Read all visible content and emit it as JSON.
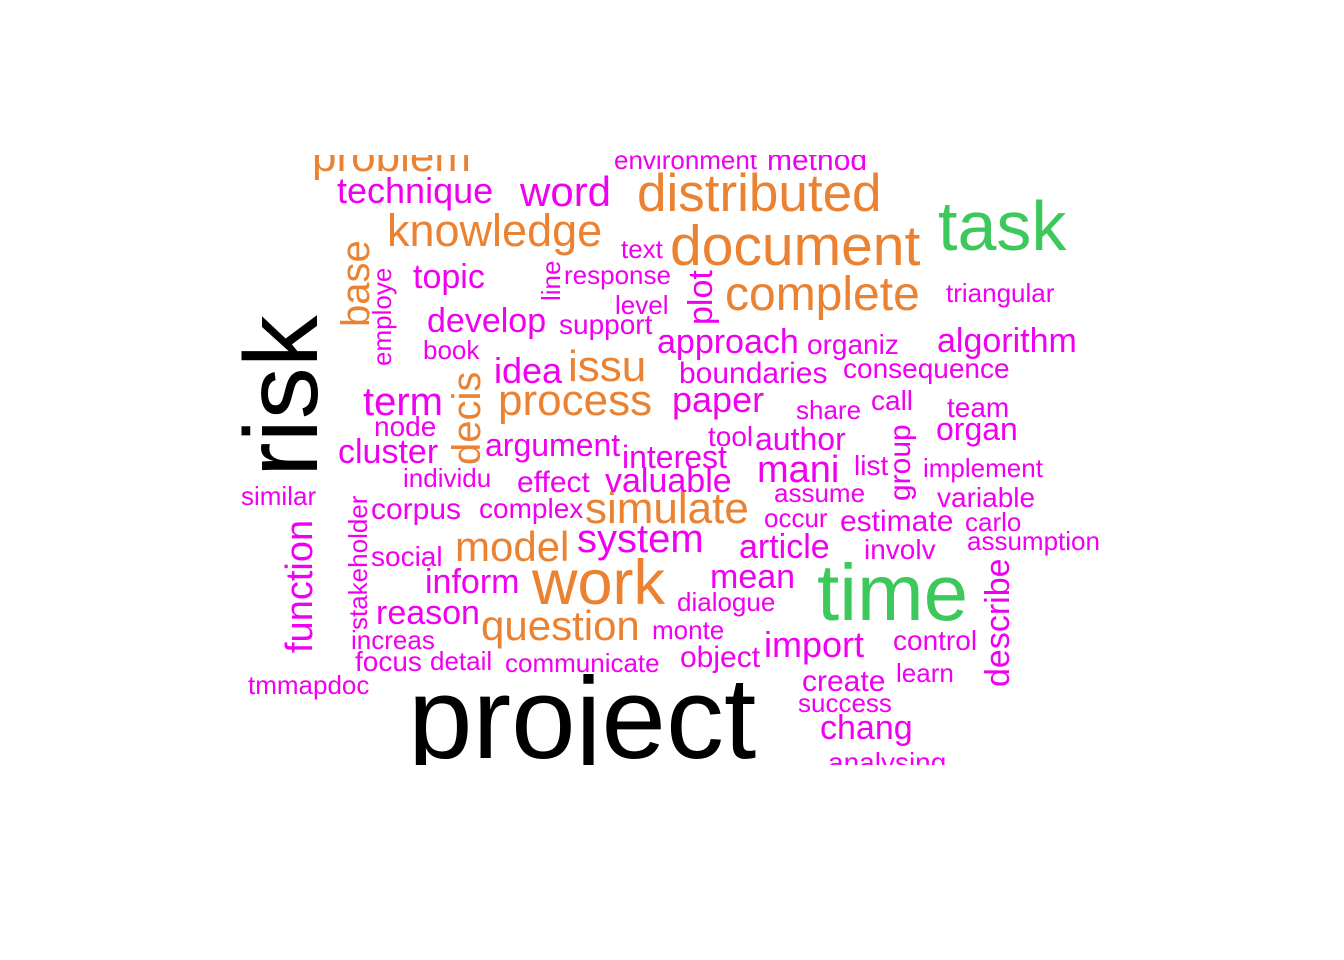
{
  "colors": {
    "black": "#000000",
    "green": "#3cc85a",
    "orange": "#eb8232",
    "magenta": "#f000f0"
  },
  "words": {
    "project": "project",
    "risk": "risk",
    "time": "time",
    "task": "task",
    "work": "work",
    "document": "document",
    "distributed": "distributed",
    "complete": "complete",
    "knowledge": "knowledge",
    "process": "process",
    "simulate": "simulate",
    "model": "model",
    "question": "question",
    "issu": "issu",
    "problem": "problem",
    "base": "base",
    "decis": "decis",
    "system": "system",
    "word": "word",
    "technique": "technique",
    "environment": "environment",
    "method": "method",
    "text": "text",
    "topic": "topic",
    "response": "response",
    "line": "line",
    "plot": "plot",
    "employe": "employe",
    "level": "level",
    "triangular": "triangular",
    "develop": "develop",
    "support": "support",
    "approach": "approach",
    "organiz": "organiz",
    "algorithm": "algorithm",
    "book": "book",
    "idea": "idea",
    "boundaries": "boundaries",
    "consequence": "consequence",
    "term": "term",
    "paper": "paper",
    "share": "share",
    "call": "call",
    "team": "team",
    "node": "node",
    "tool": "tool",
    "author": "author",
    "organ": "organ",
    "cluster": "cluster",
    "argument": "argument",
    "interest": "interest",
    "group": "group",
    "list": "list",
    "mani": "mani",
    "implement": "implement",
    "individu": "individu",
    "effect": "effect",
    "valuable": "valuable",
    "assume": "assume",
    "similar": "similar",
    "variable": "variable",
    "corpus": "corpus",
    "complex": "complex",
    "stakeholder": "stakeholder",
    "occur": "occur",
    "estimate": "estimate",
    "carlo": "carlo",
    "function": "function",
    "assumption": "assumption",
    "article": "article",
    "involv": "involv",
    "social": "social",
    "inform": "inform",
    "mean": "mean",
    "dialogue": "dialogue",
    "reason": "reason",
    "describe": "describe",
    "increas": "increas",
    "monte": "monte",
    "import": "import",
    "control": "control",
    "focus": "focus",
    "detail": "detail",
    "communicate": "communicate",
    "object": "object",
    "learn": "learn",
    "tmmapdoc": "tmmapdoc",
    "create": "create",
    "success": "success",
    "chang": "chang",
    "analysing": "analysing"
  }
}
